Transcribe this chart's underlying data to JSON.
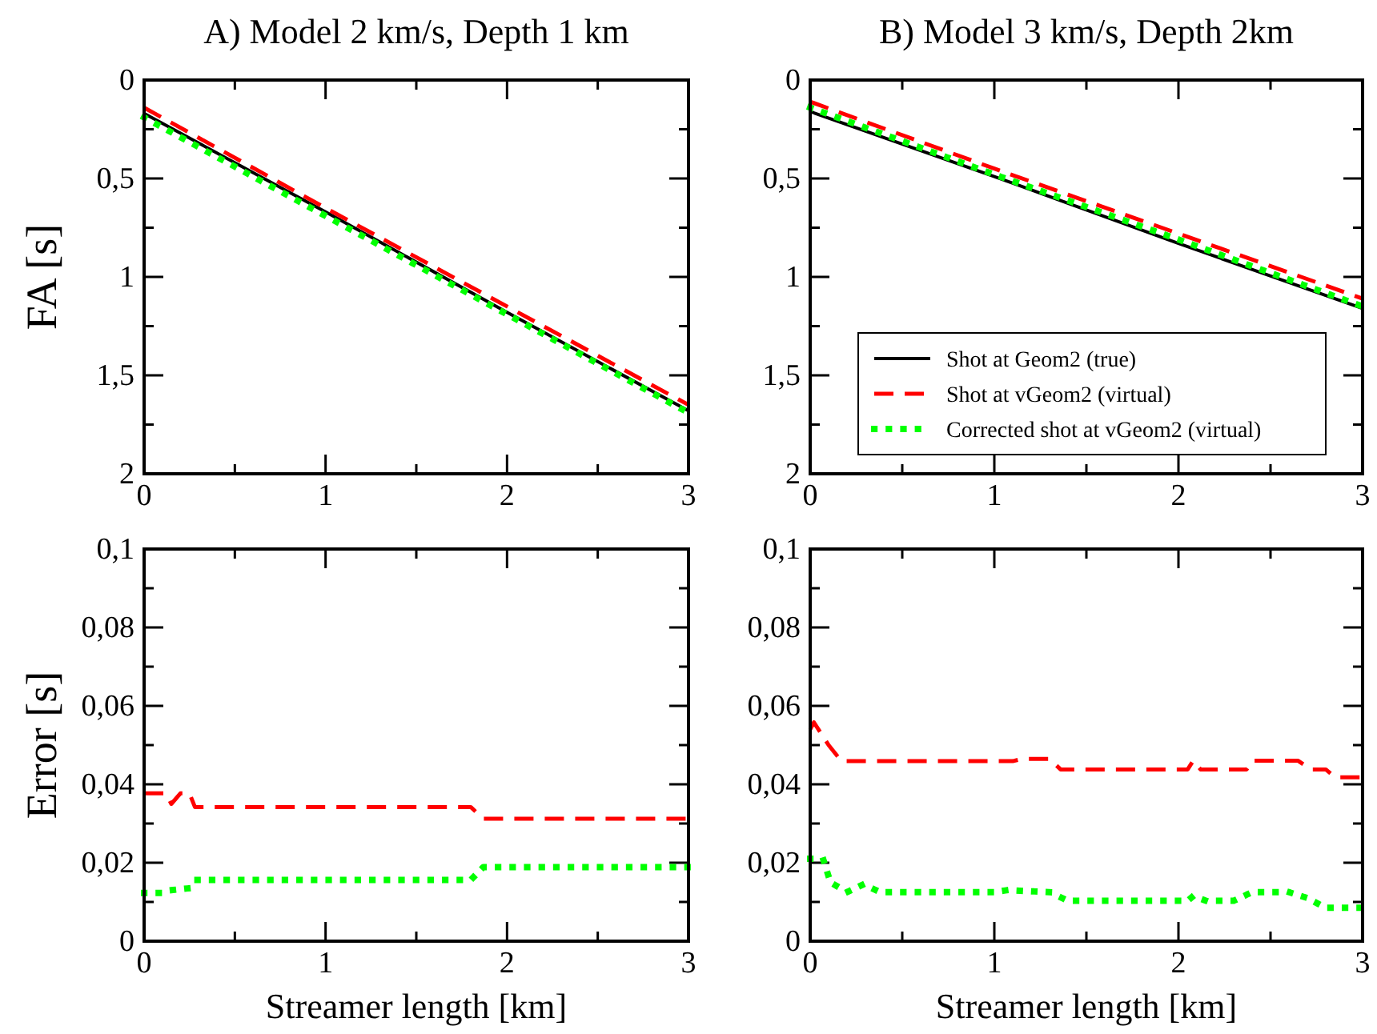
{
  "chart_data": [
    {
      "type": "line",
      "title": "A) Model 2 km/s, Depth 1 km",
      "ylabel": "FA [s]",
      "x": [
        0,
        1,
        2,
        3
      ],
      "xlim": [
        0,
        3
      ],
      "ylim": [
        2,
        0
      ],
      "xticks": [
        0,
        {
          "value": 0.5,
          "label": null
        },
        1,
        {
          "value": 1.5,
          "label": null
        },
        2,
        {
          "value": 2.5,
          "label": null
        },
        3
      ],
      "yticks": [
        0,
        {
          "value": 0.25,
          "label": null
        },
        {
          "value": 0.5,
          "label": "0,5"
        },
        {
          "value": 0.75,
          "label": null
        },
        1,
        {
          "value": 1.25,
          "label": null
        },
        {
          "value": 1.5,
          "label": "1,5"
        },
        {
          "value": 1.75,
          "label": null
        },
        2
      ],
      "series": [
        {
          "color": "#000000",
          "line_style": "solid",
          "values": [
            0.17,
            0.67,
            1.18,
            1.68
          ]
        },
        {
          "color": "#ff0000",
          "line_style": "dashed",
          "values": [
            0.14,
            0.65,
            1.15,
            1.65
          ]
        },
        {
          "color": "#00ff00",
          "line_style": "dotted",
          "values": [
            0.19,
            0.69,
            1.19,
            1.69
          ]
        }
      ]
    },
    {
      "type": "line",
      "title": "B) Model 3 km/s, Depth 2km",
      "legend": "bottom",
      "x": [
        0,
        1,
        2,
        3
      ],
      "xlim": [
        0,
        3
      ],
      "ylim": [
        2,
        0
      ],
      "xticks": [
        0,
        {
          "value": 0.5,
          "label": null
        },
        1,
        {
          "value": 1.5,
          "label": null
        },
        2,
        {
          "value": 2.5,
          "label": null
        },
        3
      ],
      "yticks": [
        0,
        {
          "value": 0.25,
          "label": null
        },
        {
          "value": 0.5,
          "label": "0,5"
        },
        {
          "value": 0.75,
          "label": null
        },
        1,
        {
          "value": 1.25,
          "label": null
        },
        {
          "value": 1.5,
          "label": "1,5"
        },
        {
          "value": 1.75,
          "label": null
        },
        2
      ],
      "series": [
        {
          "name": "Shot at Geom2 (true)",
          "color": "#000000",
          "line_style": "solid",
          "values": [
            0.16,
            0.49,
            0.83,
            1.16
          ]
        },
        {
          "name": "Shot at vGeom2 (virtual)",
          "color": "#ff0000",
          "line_style": "dashed",
          "values": [
            0.11,
            0.45,
            0.78,
            1.11
          ]
        },
        {
          "name": "Corrected shot at vGeom2 (virtual)",
          "color": "#00ff00",
          "line_style": "dotted",
          "values": [
            0.14,
            0.48,
            0.81,
            1.15
          ]
        }
      ]
    },
    {
      "type": "line",
      "ylabel": "Error [s]",
      "xlabel": "Streamer length [km]",
      "xlim": [
        0,
        3
      ],
      "ylim": [
        0,
        0.1
      ],
      "xticks": [
        0,
        {
          "value": 0.5,
          "label": null
        },
        1,
        {
          "value": 1.5,
          "label": null
        },
        2,
        {
          "value": 2.5,
          "label": null
        },
        3
      ],
      "yticks": [
        0,
        {
          "value": 0.01,
          "label": null
        },
        {
          "value": 0.02,
          "label": "0,02"
        },
        {
          "value": 0.03,
          "label": null
        },
        {
          "value": 0.04,
          "label": "0,04"
        },
        {
          "value": 0.05,
          "label": null
        },
        {
          "value": 0.06,
          "label": "0,06"
        },
        {
          "value": 0.07,
          "label": null
        },
        {
          "value": 0.08,
          "label": "0,08"
        },
        {
          "value": 0.09,
          "label": null
        },
        {
          "value": 0.1,
          "label": "0,1"
        }
      ],
      "series": [
        {
          "color": "#ff0000",
          "line_style": "dashed",
          "x": [
            0,
            0.12,
            0.15,
            0.2,
            0.25,
            0.28,
            1.8,
            1.87,
            3
          ],
          "values": [
            0.0377,
            0.0377,
            0.035,
            0.0377,
            0.0377,
            0.0342,
            0.0342,
            0.0312,
            0.0312
          ]
        },
        {
          "color": "#00ff00",
          "line_style": "dotted",
          "x": [
            0,
            0.1,
            0.15,
            0.25,
            0.28,
            1.8,
            1.87,
            3
          ],
          "values": [
            0.0123,
            0.0123,
            0.013,
            0.0135,
            0.0156,
            0.0156,
            0.0189,
            0.0189
          ]
        }
      ]
    },
    {
      "type": "line",
      "xlabel": "Streamer length [km]",
      "xlim": [
        0,
        3
      ],
      "ylim": [
        0,
        0.1
      ],
      "xticks": [
        0,
        {
          "value": 0.5,
          "label": null
        },
        1,
        {
          "value": 1.5,
          "label": null
        },
        2,
        {
          "value": 2.5,
          "label": null
        },
        3
      ],
      "yticks": [
        0,
        {
          "value": 0.01,
          "label": null
        },
        {
          "value": 0.02,
          "label": "0,02"
        },
        {
          "value": 0.03,
          "label": null
        },
        {
          "value": 0.04,
          "label": "0,04"
        },
        {
          "value": 0.05,
          "label": null
        },
        {
          "value": 0.06,
          "label": "0,06"
        },
        {
          "value": 0.07,
          "label": null
        },
        {
          "value": 0.08,
          "label": "0,08"
        },
        {
          "value": 0.09,
          "label": null
        },
        {
          "value": 0.1,
          "label": "0,1"
        }
      ],
      "series": [
        {
          "color": "#ff0000",
          "line_style": "dashed",
          "x": [
            0,
            0.02,
            0.1,
            0.17,
            1.1,
            1.15,
            1.3,
            1.36,
            2.05,
            2.08,
            2.12,
            2.37,
            2.4,
            2.65,
            2.72,
            2.8,
            2.85,
            3
          ],
          "values": [
            0.054,
            0.0558,
            0.05,
            0.0459,
            0.0459,
            0.0465,
            0.0465,
            0.0438,
            0.0438,
            0.046,
            0.0438,
            0.0438,
            0.046,
            0.046,
            0.0438,
            0.0438,
            0.0418,
            0.0418
          ]
        },
        {
          "color": "#00ff00",
          "line_style": "dotted",
          "x": [
            0,
            0.07,
            0.11,
            0.2,
            0.29,
            0.38,
            1.0,
            1.07,
            1.3,
            1.4,
            2.05,
            2.08,
            2.15,
            2.3,
            2.4,
            2.6,
            2.7,
            2.8,
            3
          ],
          "values": [
            0.021,
            0.021,
            0.015,
            0.0125,
            0.0145,
            0.0125,
            0.0125,
            0.013,
            0.0125,
            0.0103,
            0.0103,
            0.0115,
            0.0103,
            0.0103,
            0.0125,
            0.0125,
            0.011,
            0.0085,
            0.0085
          ]
        }
      ]
    }
  ]
}
